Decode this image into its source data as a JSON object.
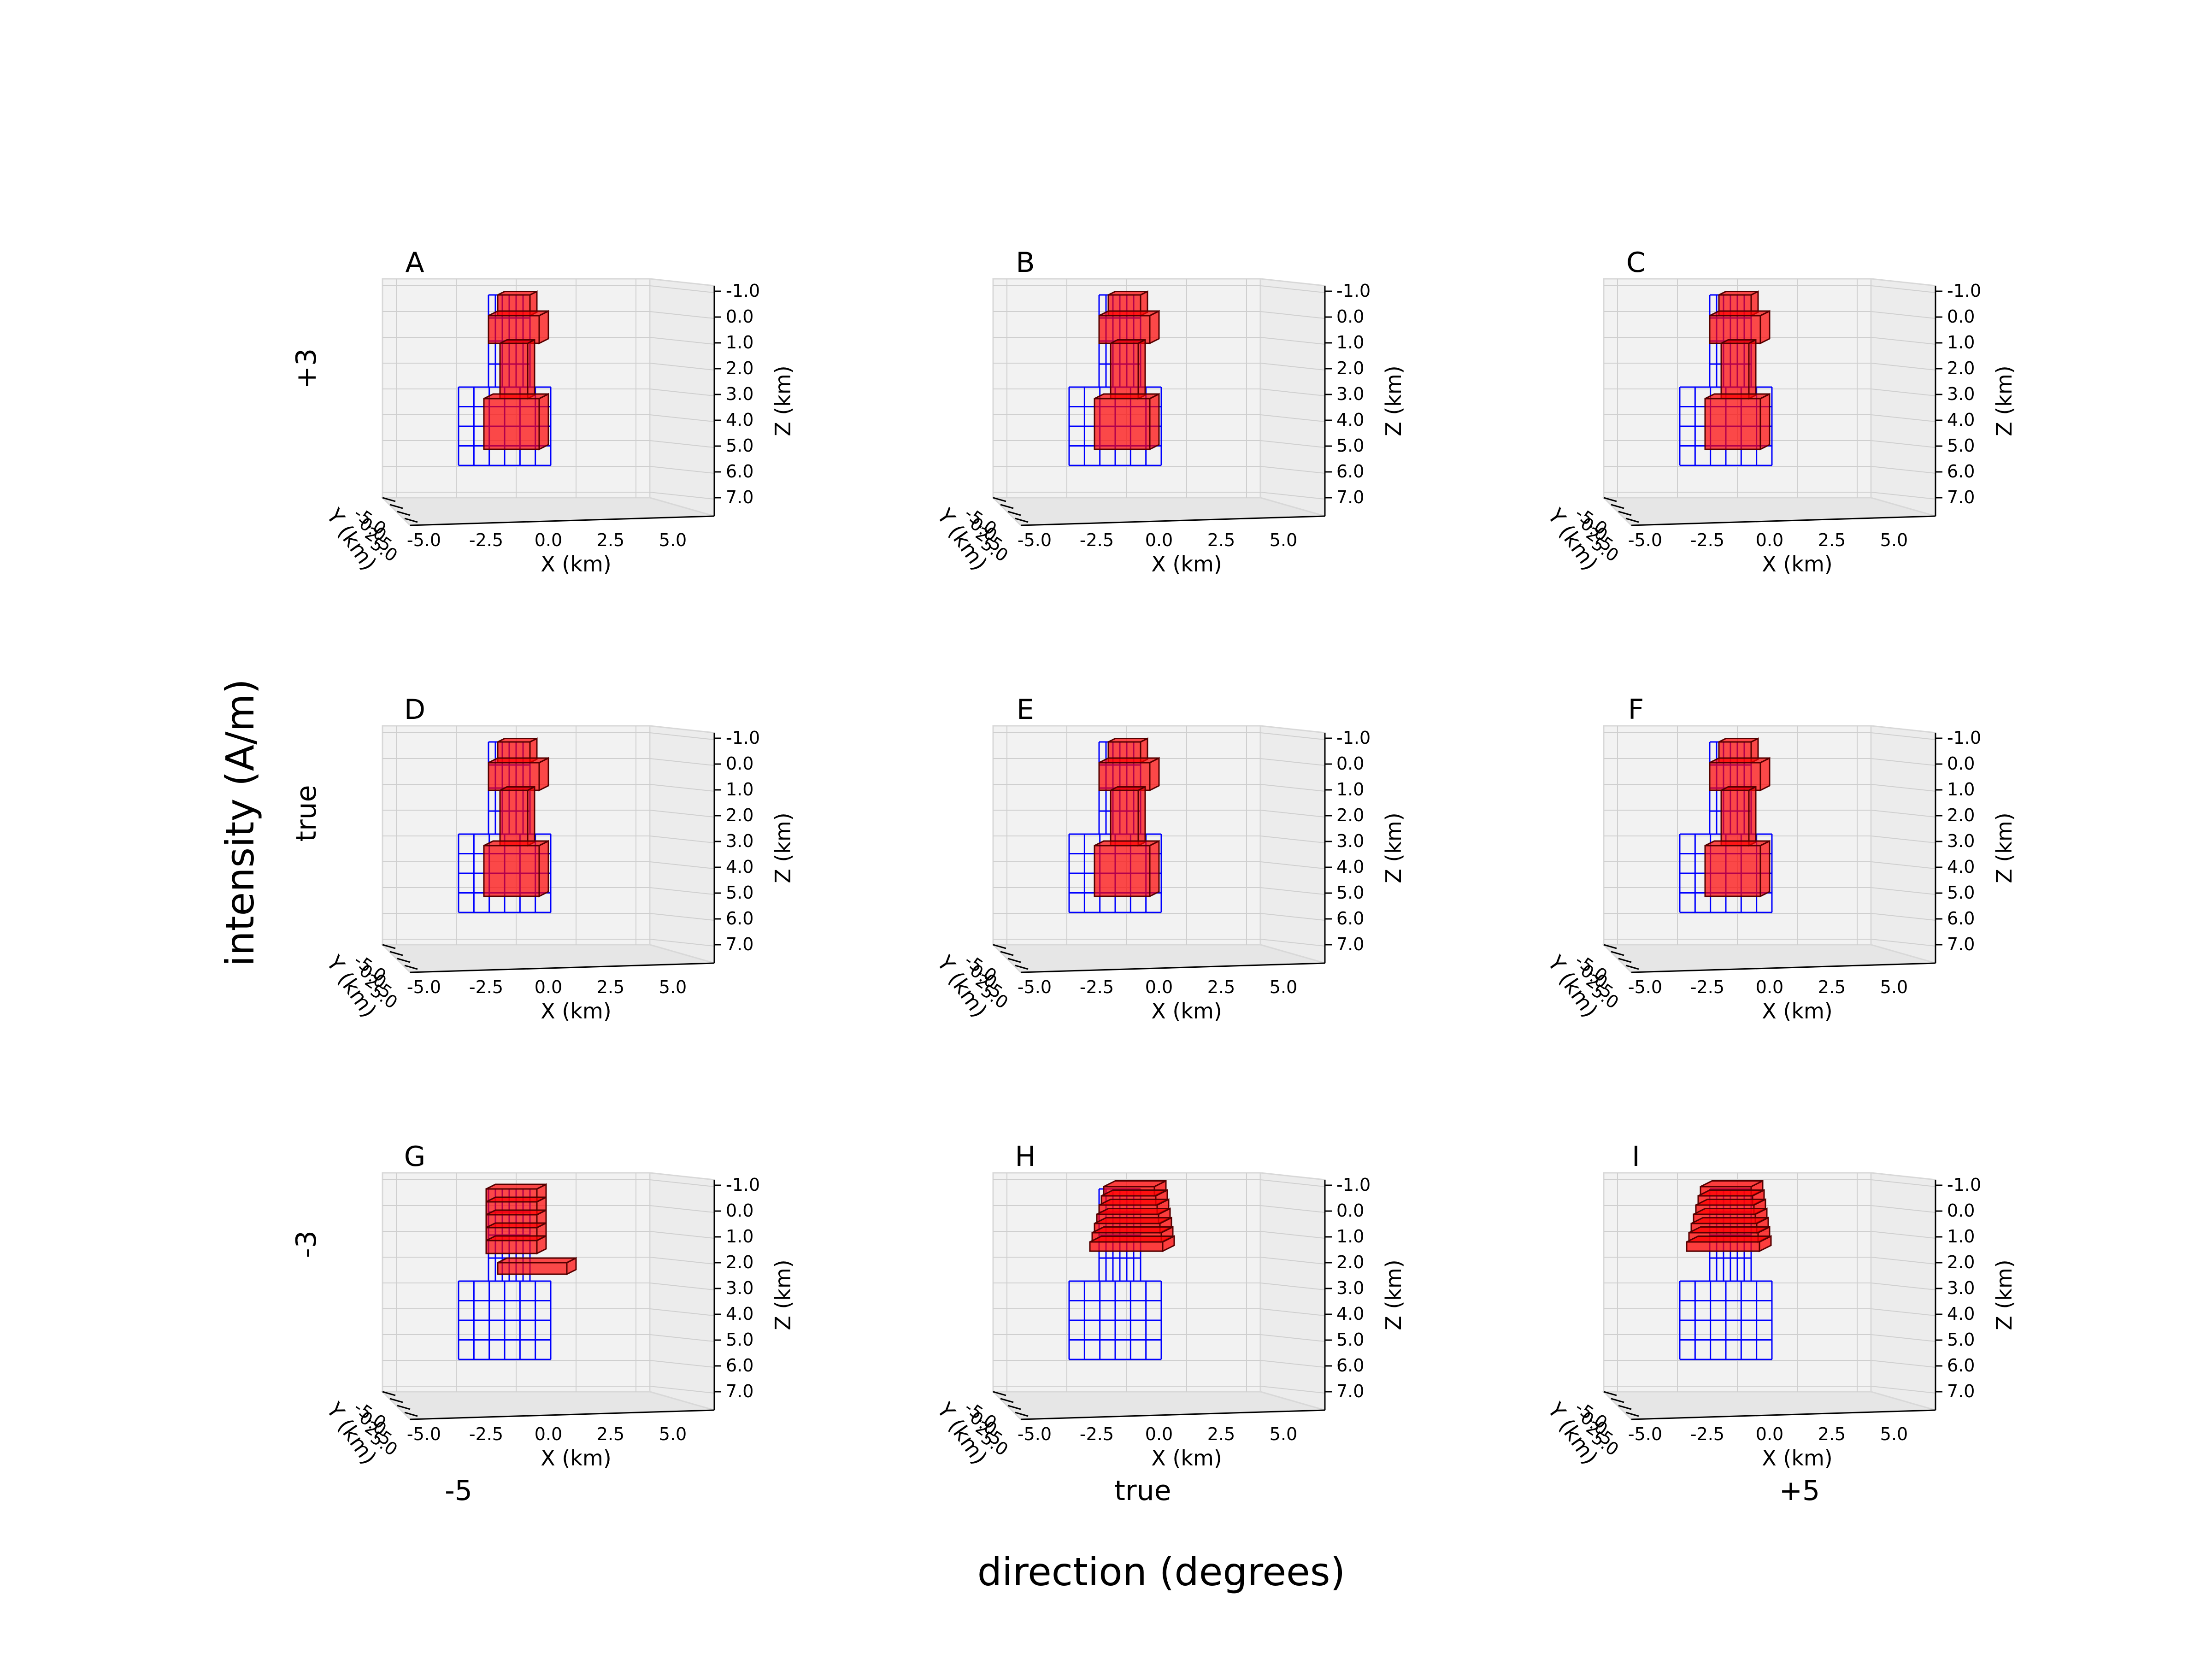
{
  "figure": {
    "ylabel": "intensity (A/m)",
    "xlabel": "direction (degrees)",
    "row_labels": [
      "+3",
      "true",
      "-3"
    ],
    "col_labels": [
      "-5",
      "true",
      "+5"
    ]
  },
  "axes": {
    "x_label": "X (km)",
    "y_label": "Y (km)",
    "z_label": "Z (km)",
    "x_ticks": [
      "-5.0",
      "-2.5",
      "0.0",
      "2.5",
      "5.0"
    ],
    "y_ticks": [
      "-5.0",
      "0.0",
      "2.5",
      "5.0"
    ],
    "z_ticks": [
      "-1.0",
      "0.0",
      "1.0",
      "2.0",
      "3.0",
      "4.0",
      "5.0",
      "6.0",
      "7.0"
    ]
  },
  "colors": {
    "true_model": "#0000ff",
    "recovered": "#ff0000",
    "pane": "#f2f2f2",
    "grid": "#cfcfcf"
  },
  "panels": [
    {
      "label": "A"
    },
    {
      "label": "B"
    },
    {
      "label": "C"
    },
    {
      "label": "D"
    },
    {
      "label": "E"
    },
    {
      "label": "F"
    },
    {
      "label": "G"
    },
    {
      "label": "H"
    },
    {
      "label": "I"
    }
  ]
}
